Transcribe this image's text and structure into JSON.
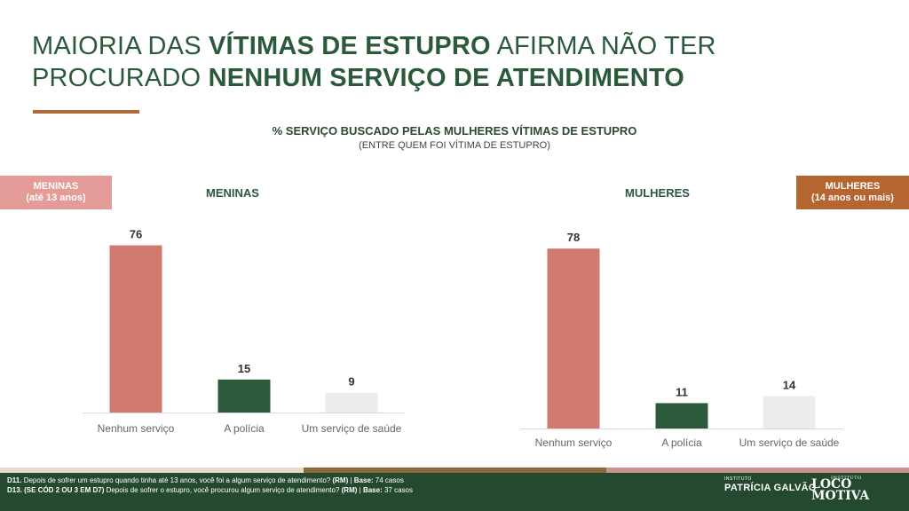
{
  "title": {
    "line1_normal": "MAIORIA DAS ",
    "line1_bold": "VÍTIMAS DE ESTUPRO",
    "line1_after": " AFIRMA NÃO TER",
    "line2_normal": "PROCURADO ",
    "line2_bold": "NENHUM SERVIÇO DE ATENDIMENTO"
  },
  "tags": {
    "left_line1": "MENINAS",
    "left_line2": "(até 13 anos)",
    "right_line1": "MULHERES",
    "right_line2": "(14 anos ou mais)"
  },
  "colors": {
    "title_green": "#2a5a3a",
    "bar_nenhum": "#d07a70",
    "bar_policia": "#2d5a3d",
    "bar_saude": "#ececec",
    "tag_left": "#e39c98",
    "tag_right": "#b5652f",
    "footer": "#24492f"
  },
  "chart_data": [
    {
      "type": "bar",
      "title": "% SERVIÇO BUSCADO PELAS MULHERES VÍTIMAS DE ESTUPRO",
      "subtitle": "(ENTRE QUEM FOI VÍTIMA DE ESTUPRO)",
      "panel_title": "MENINAS",
      "categories": [
        "Nenhum serviço",
        "A polícia",
        "Um serviço de saúde"
      ],
      "values": [
        76,
        15,
        9
      ],
      "ylim": [
        0,
        100
      ]
    },
    {
      "type": "bar",
      "title": "% SERVIÇO BUSCADO PELAS MULHERES VÍTIMAS DE ESTUPRO",
      "subtitle": "(ENTRE QUEM FOI VÍTIMA DE ESTUPRO)",
      "panel_title": "MULHERES",
      "categories": [
        "Nenhum serviço",
        "A polícia",
        "Um serviço de saúde"
      ],
      "values": [
        78,
        11,
        14
      ],
      "ylim": [
        0,
        100
      ]
    }
  ],
  "footnotes": [
    {
      "code": "D11.",
      "text": " Depois de sofrer um estupro quando tinha até 13 anos, você foi a algum serviço de atendimento? ",
      "rm": "(RM)",
      "sep": " | ",
      "base_label": "Base:",
      "base_value": " 74 casos"
    },
    {
      "code": "D13. (SE CÓD 2 OU 3 EM D7)",
      "text": " Depois de sofrer o estupro, você procurou algum serviço de atendimento? ",
      "rm": "(RM)",
      "sep": " | ",
      "base_label": "Base:",
      "base_value": " 37 casos"
    }
  ],
  "logos": {
    "logo1_small": "INSTITUTO",
    "logo1_big": "PATRÍCIA GALVÃO",
    "logo2_small": "INSTITUTO",
    "logo2_line1": "LOCO",
    "logo2_line2": "MOTIVA"
  }
}
